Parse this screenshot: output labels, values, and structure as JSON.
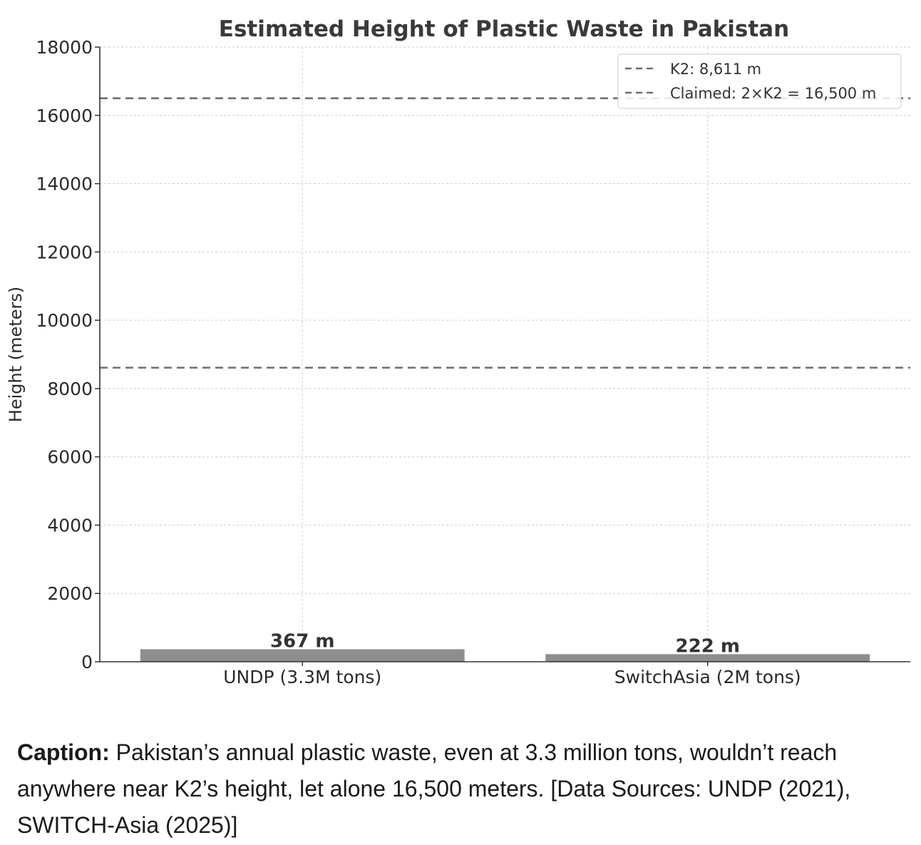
{
  "chart_data": {
    "type": "bar",
    "title": "Estimated Height of Plastic Waste in Pakistan",
    "xlabel": "",
    "ylabel": "Height (meters)",
    "ylim": [
      0,
      18000
    ],
    "yticks": [
      "0",
      "2000",
      "4000",
      "6000",
      "8000",
      "10000",
      "12000",
      "14000",
      "16000",
      "18000"
    ],
    "categories": [
      "UNDP (3.3M tons)",
      "SwitchAsia (2M tons)"
    ],
    "values": [
      367,
      222
    ],
    "data_labels": [
      "367 m",
      "222 m"
    ],
    "reference_lines": [
      {
        "name": "K2: 8,611 m",
        "value": 8611,
        "style": "dashed"
      },
      {
        "name": "Claimed: 2×K2 = 16,500 m",
        "value": 16500,
        "style": "dashed"
      }
    ],
    "grid": true,
    "legend_position": "top-right",
    "colors": {
      "bar": "#8e8e8e",
      "reference_line": "#6e6e6e",
      "grid": "#cfcfcf"
    }
  },
  "caption": {
    "label": "Caption:",
    "text": " Pakistan’s annual plastic waste, even at 3.3 million tons, wouldn’t reach anywhere near K2’s height, let alone 16,500 meters. [Data Sources: UNDP (2021), SWITCH-Asia (2025)]"
  }
}
